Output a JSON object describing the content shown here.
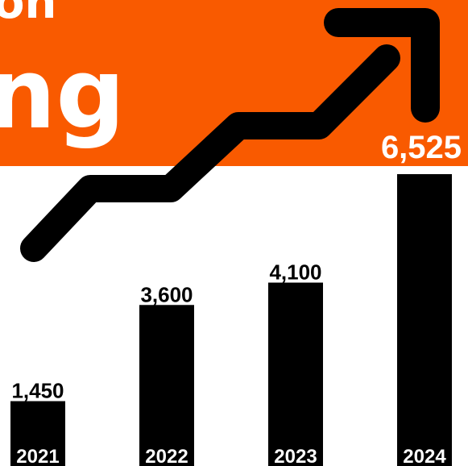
{
  "banner": {
    "line1_fragment": "on",
    "line2_fragment": "ng",
    "color": "#F95A00"
  },
  "colors": {
    "bar": "#000000",
    "arrow": "#000000",
    "background": "#FFFFFF",
    "banner_text": "#FFFFFF"
  },
  "chart_data": {
    "type": "bar",
    "categories": [
      "2021",
      "2022",
      "2023",
      "2024"
    ],
    "values": [
      1450,
      3600,
      4100,
      6525
    ],
    "value_labels": [
      "1,450",
      "3,600",
      "4,100",
      "6,525"
    ],
    "ylim": [
      0,
      7000
    ],
    "grid": false,
    "legend": "none",
    "decoration": "trend-arrow-up"
  }
}
